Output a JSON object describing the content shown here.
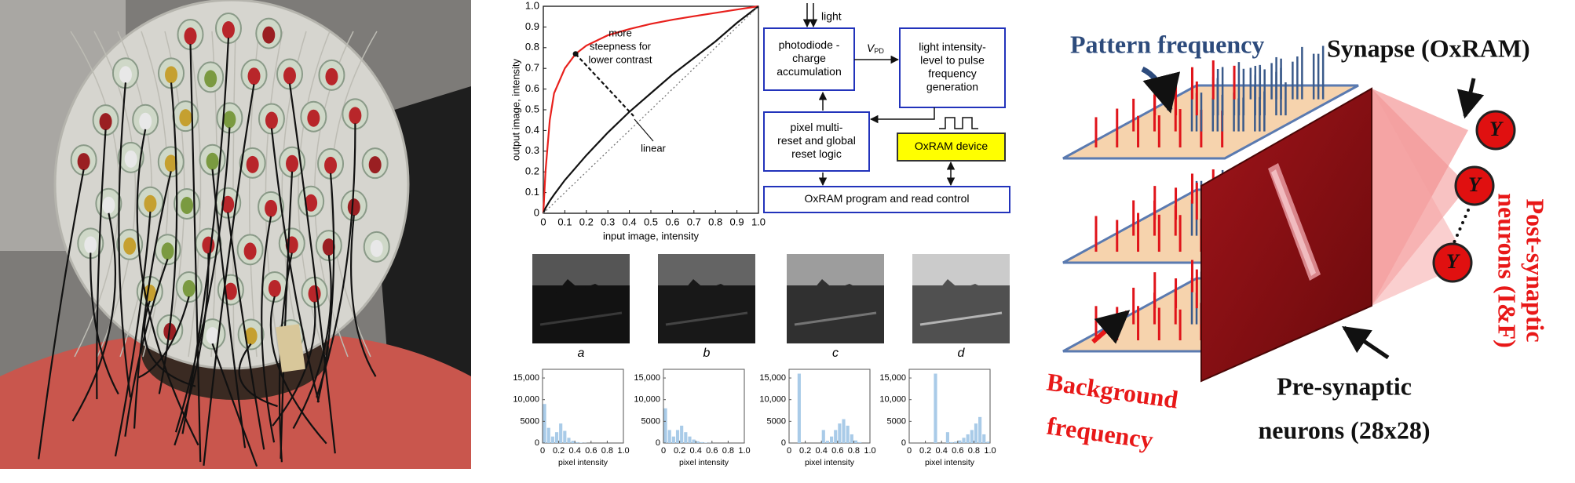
{
  "curve_chart": {
    "type": "line",
    "xlabel": "input image, intensity",
    "ylabel": "output image, intensity",
    "xlim": [
      0,
      1
    ],
    "ylim": [
      0,
      1
    ],
    "xticks": [
      0,
      0.1,
      0.2,
      0.3,
      0.4,
      0.5,
      0.6,
      0.7,
      0.8,
      0.9,
      {
        "value": 1,
        "label": "1.0"
      }
    ],
    "yticks": [
      0,
      0.1,
      0.2,
      0.3,
      0.4,
      0.5,
      0.6,
      0.7,
      0.8,
      0.9,
      {
        "value": 1,
        "label": "1.0"
      }
    ],
    "x": [
      0,
      0.01,
      0.03,
      0.05,
      0.1,
      0.15,
      0.2,
      0.3,
      0.4,
      0.5,
      0.6,
      0.7,
      0.8,
      0.9,
      1
    ],
    "series": [
      {
        "color": "#e8201c",
        "style": "solid",
        "values": [
          0,
          0.2,
          0.45,
          0.58,
          0.7,
          0.77,
          0.81,
          0.86,
          0.89,
          0.915,
          0.935,
          0.952,
          0.968,
          0.984,
          1
        ]
      },
      {
        "color": "#111111",
        "style": "solid",
        "values": [
          0,
          0.025,
          0.06,
          0.09,
          0.16,
          0.22,
          0.28,
          0.39,
          0.49,
          0.58,
          0.67,
          0.75,
          0.83,
          0.92,
          1
        ]
      },
      {
        "color": "#777777",
        "style": "dotted",
        "values": [
          0,
          0.01,
          0.03,
          0.05,
          0.1,
          0.15,
          0.2,
          0.3,
          0.4,
          0.5,
          0.6,
          0.7,
          0.8,
          0.9,
          1
        ]
      }
    ],
    "marker_point": {
      "x": 0.15,
      "y": 0.77
    },
    "annotations": [
      {
        "lines": [
          "more",
          "steepness for",
          "lower contrast"
        ]
      },
      {
        "lines": [
          "linear"
        ]
      }
    ]
  },
  "block_diagram": {
    "border_color": "#2233bb",
    "input_label": "light",
    "voltage_label": {
      "symbol": "V",
      "subscript": "PD"
    },
    "nodes": [
      {
        "lines": [
          "photodiode -",
          "charge",
          "accumulation"
        ]
      },
      {
        "lines": [
          "light intensity-",
          "level to pulse",
          "frequency",
          "generation"
        ]
      },
      {
        "lines": [
          "pixel multi-",
          "reset and global",
          "reset logic"
        ]
      },
      {
        "lines": [
          "OxRAM device"
        ],
        "fill": "#ffff00"
      },
      {
        "lines": [
          "OxRAM program and read control"
        ]
      }
    ]
  },
  "images": {
    "labels": [
      "a",
      "b",
      "c",
      "d"
    ]
  },
  "histograms": [
    {
      "type": "histogram",
      "color": "#a9cbe8",
      "xlabel": "pixel intensity",
      "xlim": [
        0,
        1
      ],
      "ylim": [
        0,
        17000
      ],
      "xticks": [
        0,
        0.2,
        0.4,
        0.6,
        0.8,
        {
          "value": 1,
          "label": "1.0"
        }
      ],
      "yticks": [
        0,
        5000,
        {
          "value": 10000,
          "label": "10,000"
        },
        {
          "value": 15000,
          "label": "15,000"
        }
      ],
      "bins": [
        0,
        0.05,
        0.1,
        0.15,
        0.2,
        0.25,
        0.3,
        0.35,
        0.4,
        0.45,
        0.5,
        0.55,
        0.6,
        0.65,
        0.7,
        0.75,
        0.8,
        0.85,
        0.9,
        0.95,
        1
      ],
      "values": [
        9000,
        3500,
        1500,
        2500,
        4500,
        2800,
        1200,
        500,
        200,
        100,
        50,
        0,
        0,
        0,
        0,
        0,
        0,
        0,
        0,
        0
      ]
    },
    {
      "type": "histogram",
      "color": "#a9cbe8",
      "xlabel": "pixel intensity",
      "xlim": [
        0,
        1
      ],
      "ylim": [
        0,
        17000
      ],
      "xticks": [
        0,
        0.2,
        0.4,
        0.6,
        0.8,
        {
          "value": 1,
          "label": "1.0"
        }
      ],
      "yticks": [
        0,
        5000,
        {
          "value": 10000,
          "label": "10,000"
        },
        {
          "value": 15000,
          "label": "15,000"
        }
      ],
      "bins": [
        0,
        0.05,
        0.1,
        0.15,
        0.2,
        0.25,
        0.3,
        0.35,
        0.4,
        0.45,
        0.5,
        0.55,
        0.6,
        0.65,
        0.7,
        0.75,
        0.8,
        0.85,
        0.9,
        0.95,
        1
      ],
      "values": [
        8000,
        3000,
        1500,
        3000,
        4000,
        2500,
        1500,
        800,
        400,
        200,
        100,
        50,
        0,
        0,
        0,
        0,
        0,
        0,
        0,
        0
      ]
    },
    {
      "type": "histogram",
      "color": "#a9cbe8",
      "xlabel": "pixel intensity",
      "xlim": [
        0,
        1
      ],
      "ylim": [
        0,
        17000
      ],
      "xticks": [
        0,
        0.2,
        0.4,
        0.6,
        0.8,
        {
          "value": 1,
          "label": "1.0"
        }
      ],
      "yticks": [
        0,
        5000,
        {
          "value": 10000,
          "label": "10,000"
        },
        {
          "value": 15000,
          "label": "15,000"
        }
      ],
      "bins": [
        0,
        0.05,
        0.1,
        0.15,
        0.2,
        0.25,
        0.3,
        0.35,
        0.4,
        0.45,
        0.5,
        0.55,
        0.6,
        0.65,
        0.7,
        0.75,
        0.8,
        0.85,
        0.9,
        0.95,
        1
      ],
      "values": [
        0,
        0,
        16000,
        0,
        0,
        0,
        0,
        0,
        3000,
        500,
        1500,
        3000,
        4500,
        5500,
        4000,
        2000,
        600,
        200,
        0,
        0
      ]
    },
    {
      "type": "histogram",
      "color": "#a9cbe8",
      "xlabel": "pixel intensity",
      "xlim": [
        0,
        1
      ],
      "ylim": [
        0,
        17000
      ],
      "xticks": [
        0,
        0.2,
        0.4,
        0.6,
        0.8,
        {
          "value": 1,
          "label": "1.0"
        }
      ],
      "yticks": [
        0,
        5000,
        {
          "value": 10000,
          "label": "10,000"
        },
        {
          "value": 15000,
          "label": "15,000"
        }
      ],
      "bins": [
        0,
        0.05,
        0.1,
        0.15,
        0.2,
        0.25,
        0.3,
        0.35,
        0.4,
        0.45,
        0.5,
        0.55,
        0.6,
        0.65,
        0.7,
        0.75,
        0.8,
        0.85,
        0.9,
        0.95,
        1
      ],
      "values": [
        0,
        0,
        0,
        0,
        0,
        0,
        16000,
        0,
        0,
        2500,
        200,
        300,
        600,
        1200,
        2000,
        3000,
        4500,
        6000,
        2000,
        300
      ]
    }
  ],
  "network_diagram": {
    "pattern_label": "Pattern frequency",
    "synapse_label": "Synapse (OxRAM)",
    "post_label_lines": [
      "Post-synaptic",
      "neurons (I&F)"
    ],
    "background_label_lines": [
      "Background",
      "frequency"
    ],
    "pre_label_lines": [
      "Pre-synaptic",
      "neurons (28x28)"
    ],
    "neuron_labels": [
      "Y",
      "Y",
      "Y"
    ]
  }
}
